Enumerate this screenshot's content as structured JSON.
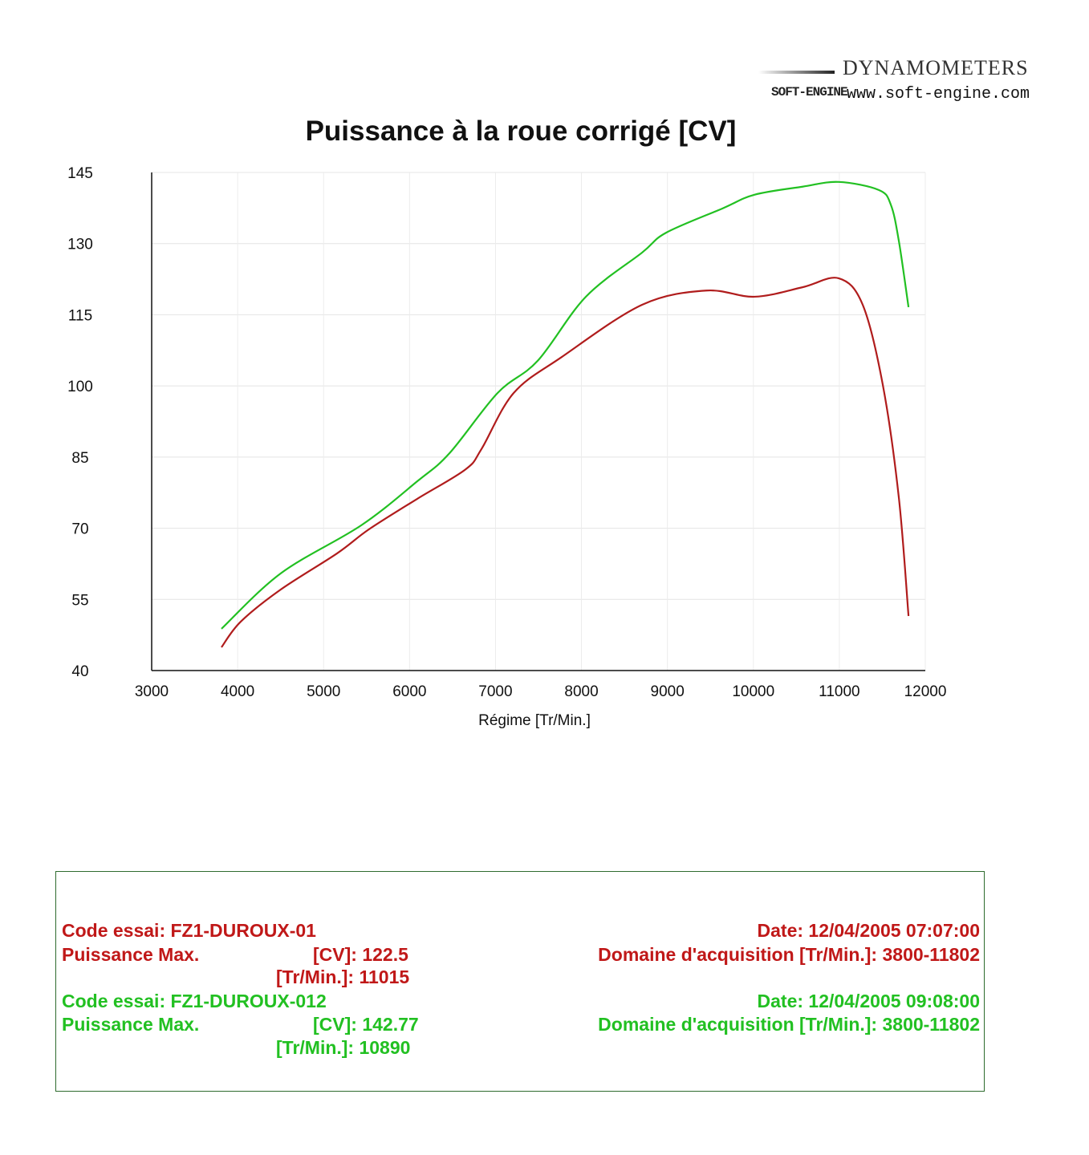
{
  "logo": {
    "brand": "DYNAMOMETERS",
    "sub": "SOFT-ENGINE",
    "url": "www.soft-engine.com"
  },
  "chart_data": {
    "type": "line",
    "title": "Puissance à la roue corrigé [CV]",
    "xlabel": "Régime [Tr/Min.]",
    "ylabel": "",
    "xlim": [
      3000,
      12000
    ],
    "ylim": [
      40,
      145
    ],
    "xticks": [
      3000,
      4000,
      5000,
      6000,
      7000,
      8000,
      9000,
      10000,
      11000,
      12000
    ],
    "yticks": [
      40,
      55,
      70,
      85,
      100,
      115,
      130,
      145
    ],
    "grid": true,
    "series": [
      {
        "color": "#22c022",
        "x": [
          3812,
          4503,
          5437,
          6090,
          6464,
          7024,
          7491,
          8051,
          8705,
          8985,
          9639,
          10012,
          10572,
          10992,
          11459,
          11599,
          11692,
          11805
        ],
        "y": [
          48.8,
          60.5,
          70.6,
          79.9,
          85.8,
          98.5,
          105.3,
          118.8,
          128.1,
          132.3,
          137.4,
          140.3,
          142.0,
          143.0,
          141.3,
          138.2,
          130.6,
          116.6
        ]
      },
      {
        "color": "#b01c1c",
        "x": [
          3812,
          4036,
          4503,
          5157,
          5530,
          6090,
          6651,
          6837,
          7211,
          7771,
          8705,
          9452,
          10012,
          10572,
          10992,
          11272,
          11506,
          11692,
          11805
        ],
        "y": [
          44.9,
          50.3,
          57.1,
          64.7,
          69.8,
          76.2,
          82.4,
          86.7,
          98.5,
          106.1,
          117.1,
          120.1,
          118.8,
          120.8,
          122.7,
          117.1,
          100.2,
          76.5,
          51.5
        ]
      }
    ]
  },
  "info": {
    "run1": {
      "code": "Code essai: FZ1-DUROUX-01",
      "pmax": "Puissance Max.",
      "cv": "[CV]: 122.5",
      "rpm": "[Tr/Min.]: 11015",
      "date": "Date: 12/04/2005 07:07:00",
      "domain": "Domaine d'acquisition [Tr/Min.]: 3800-11802"
    },
    "run2": {
      "code": "Code essai: FZ1-DUROUX-012",
      "pmax": "Puissance Max.",
      "cv": "[CV]: 142.77",
      "rpm": "[Tr/Min.]: 10890",
      "date": "Date: 12/04/2005 09:08:00",
      "domain": "Domaine d'acquisition [Tr/Min.]: 3800-11802"
    }
  }
}
